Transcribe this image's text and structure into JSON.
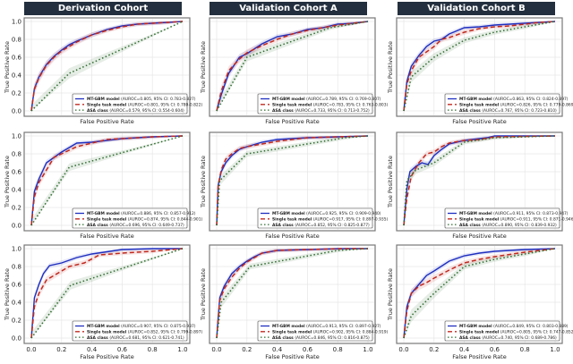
{
  "column_headers": [
    "Derivation Cohort",
    "Validation Cohort A",
    "Validation Cohort B"
  ],
  "colors": {
    "mt_gbm": "#1f2fbf",
    "single_task": "#c0281e",
    "asa": "#2e6b2e",
    "header_bg": "#232f3e"
  },
  "chart_data": [
    {
      "type": "line",
      "row": 1,
      "cohort": "Derivation Cohort",
      "xlabel": "False Positive Rate",
      "ylabel": "True Positive Rate",
      "xlim": [
        0,
        1
      ],
      "ylim": [
        0,
        1
      ],
      "xticks": [
        "0.0",
        "0.2",
        "0.4",
        "0.6",
        "0.8",
        "1.0"
      ],
      "yticks": [
        "0.0",
        "0.2",
        "0.4",
        "0.6",
        "0.8",
        "1.0"
      ],
      "grid": true,
      "legend_position": "bottom-right",
      "series": [
        {
          "name": "MT-GBM model",
          "legend": "(AUROC=0.805, 95% CI: 0.783-0.827)",
          "x": [
            0,
            0.02,
            0.05,
            0.1,
            0.15,
            0.2,
            0.25,
            0.3,
            0.4,
            0.5,
            0.6,
            0.7,
            0.8,
            0.9,
            1
          ],
          "y": [
            0,
            0.25,
            0.38,
            0.52,
            0.61,
            0.68,
            0.74,
            0.78,
            0.85,
            0.91,
            0.95,
            0.97,
            0.98,
            0.99,
            1
          ]
        },
        {
          "name": "Single task model",
          "legend": "(AUROC=0.801, 95% CI: 0.780-0.822)",
          "x": [
            0,
            0.02,
            0.05,
            0.1,
            0.15,
            0.2,
            0.25,
            0.3,
            0.4,
            0.5,
            0.6,
            0.7,
            0.8,
            0.9,
            1
          ],
          "y": [
            0,
            0.24,
            0.37,
            0.51,
            0.6,
            0.67,
            0.72,
            0.77,
            0.85,
            0.9,
            0.94,
            0.97,
            0.98,
            0.99,
            1
          ]
        },
        {
          "name": "ASA class",
          "legend": "(AUROC=0.579, 95% CI: 0.554-0.604)",
          "x": [
            0,
            0.25,
            1
          ],
          "y": [
            0,
            0.42,
            1
          ]
        }
      ]
    },
    {
      "type": "line",
      "row": 1,
      "cohort": "Validation Cohort A",
      "xlabel": "False Positive Rate",
      "ylabel": "True Positive Rate",
      "xlim": [
        0,
        1
      ],
      "ylim": [
        0,
        1
      ],
      "grid": true,
      "legend_position": "bottom-right",
      "series": [
        {
          "name": "MT-GBM model",
          "legend": "(AUROC=0.789, 95% CI: 0.769-0.807)",
          "x": [
            0,
            0.03,
            0.08,
            0.15,
            0.2,
            0.3,
            0.4,
            0.5,
            0.6,
            0.7,
            0.8,
            0.9,
            1
          ],
          "y": [
            0,
            0.18,
            0.42,
            0.6,
            0.64,
            0.75,
            0.83,
            0.86,
            0.91,
            0.93,
            0.97,
            0.98,
            1
          ]
        },
        {
          "name": "Single task model",
          "legend": "(AUROC=0.783, 95% CI: 0.763-0.803)",
          "x": [
            0,
            0.03,
            0.08,
            0.15,
            0.2,
            0.3,
            0.4,
            0.5,
            0.6,
            0.7,
            0.8,
            0.9,
            1
          ],
          "y": [
            0,
            0.22,
            0.45,
            0.58,
            0.65,
            0.73,
            0.8,
            0.86,
            0.9,
            0.93,
            0.96,
            0.98,
            1
          ]
        },
        {
          "name": "ASA class",
          "legend": "(AUROC=0.733, 95% CI: 0.713-0.752)",
          "x": [
            0,
            0.2,
            0.75,
            1
          ],
          "y": [
            0,
            0.6,
            0.93,
            1
          ]
        }
      ]
    },
    {
      "type": "line",
      "row": 1,
      "cohort": "Validation Cohort B",
      "xlabel": "False Positive Rate",
      "ylabel": "True Positive Rate",
      "xlim": [
        0,
        1
      ],
      "ylim": [
        0,
        1
      ],
      "grid": true,
      "legend_position": "bottom-right",
      "series": [
        {
          "name": "MT-GBM model",
          "legend": "(AUROC=0.863, 95% CI: 0.824-0.897)",
          "x": [
            0,
            0.02,
            0.05,
            0.1,
            0.15,
            0.2,
            0.25,
            0.3,
            0.4,
            0.5,
            0.6,
            0.7,
            0.8,
            0.9,
            1
          ],
          "y": [
            0,
            0.33,
            0.5,
            0.62,
            0.72,
            0.78,
            0.8,
            0.86,
            0.93,
            0.94,
            0.96,
            0.97,
            0.98,
            0.99,
            1
          ]
        },
        {
          "name": "Single task model",
          "legend": "(AUROC=0.826, 95% CI: 0.779-0.869)",
          "x": [
            0,
            0.02,
            0.05,
            0.1,
            0.15,
            0.2,
            0.25,
            0.3,
            0.4,
            0.5,
            0.6,
            0.7,
            0.8,
            0.9,
            1
          ],
          "y": [
            0,
            0.3,
            0.45,
            0.6,
            0.66,
            0.72,
            0.8,
            0.82,
            0.88,
            0.92,
            0.94,
            0.95,
            0.97,
            0.99,
            1
          ]
        },
        {
          "name": "ASA class",
          "legend": "(AUROC=0.767, 95% CI: 0.723-0.810)",
          "x": [
            0,
            0.05,
            0.2,
            0.4,
            0.6,
            0.8,
            1
          ],
          "y": [
            0,
            0.38,
            0.6,
            0.79,
            0.88,
            0.94,
            1
          ]
        }
      ]
    },
    {
      "type": "line",
      "row": 2,
      "cohort": "Derivation Cohort",
      "xlabel": "False Positive Rate",
      "ylabel": "True Positive Rate",
      "xlim": [
        0,
        1
      ],
      "ylim": [
        0,
        1
      ],
      "grid": true,
      "legend_position": "bottom-right",
      "series": [
        {
          "name": "MT-GBM model",
          "legend": "(AUROC=0.886, 95% CI: 0.857-0.912)",
          "x": [
            0,
            0.02,
            0.05,
            0.1,
            0.15,
            0.2,
            0.3,
            0.4,
            0.5,
            0.6,
            0.8,
            1
          ],
          "y": [
            0,
            0.38,
            0.52,
            0.7,
            0.76,
            0.82,
            0.92,
            0.93,
            0.95,
            0.97,
            0.99,
            1
          ]
        },
        {
          "name": "Single task model",
          "legend": "(AUROC=0.874, 95% CI: 0.844-0.901)",
          "x": [
            0,
            0.02,
            0.05,
            0.1,
            0.15,
            0.2,
            0.3,
            0.4,
            0.5,
            0.6,
            0.8,
            1
          ],
          "y": [
            0,
            0.32,
            0.48,
            0.62,
            0.76,
            0.8,
            0.88,
            0.92,
            0.96,
            0.97,
            0.99,
            1
          ]
        },
        {
          "name": "ASA class",
          "legend": "(AUROC=0.696, 95% CI: 0.649-0.737)",
          "x": [
            0,
            0.25,
            1
          ],
          "y": [
            0,
            0.65,
            1
          ]
        }
      ]
    },
    {
      "type": "line",
      "row": 2,
      "cohort": "Validation Cohort A",
      "xlabel": "False Positive Rate",
      "ylabel": "True Positive Rate",
      "xlim": [
        0,
        1
      ],
      "ylim": [
        0,
        1
      ],
      "grid": true,
      "legend_position": "bottom-right",
      "series": [
        {
          "name": "MT-GBM model",
          "legend": "(AUROC=0.925, 95% CI: 0.909-0.940)",
          "x": [
            0,
            0.01,
            0.03,
            0.06,
            0.1,
            0.15,
            0.2,
            0.3,
            0.4,
            0.5,
            0.6,
            0.8,
            1
          ],
          "y": [
            0,
            0.45,
            0.6,
            0.7,
            0.78,
            0.85,
            0.88,
            0.93,
            0.96,
            0.97,
            0.98,
            0.99,
            1
          ]
        },
        {
          "name": "Single task model",
          "legend": "(AUROC=0.917, 95% CI: 0.897-0.935)",
          "x": [
            0,
            0.01,
            0.03,
            0.06,
            0.1,
            0.15,
            0.2,
            0.3,
            0.4,
            0.5,
            0.6,
            0.8,
            1
          ],
          "y": [
            0,
            0.45,
            0.62,
            0.74,
            0.8,
            0.86,
            0.88,
            0.91,
            0.94,
            0.96,
            0.98,
            0.99,
            1
          ]
        },
        {
          "name": "ASA class",
          "legend": "(AUROC=0.852, 95% CI: 0.825-0.877)",
          "x": [
            0,
            0.02,
            0.2,
            0.85,
            1
          ],
          "y": [
            0,
            0.5,
            0.8,
            0.98,
            1
          ]
        }
      ]
    },
    {
      "type": "line",
      "row": 2,
      "cohort": "Validation Cohort B",
      "xlabel": "False Positive Rate",
      "ylabel": "True Positive Rate",
      "xlim": [
        0,
        1
      ],
      "ylim": [
        0,
        1
      ],
      "grid": true,
      "legend_position": "bottom-right",
      "series": [
        {
          "name": "MT-GBM model",
          "legend": "(AUROC=0.911, 95% CI: 0.873-0.947)",
          "x": [
            0,
            0.02,
            0.04,
            0.08,
            0.12,
            0.16,
            0.2,
            0.25,
            0.3,
            0.4,
            0.55,
            0.6,
            1
          ],
          "y": [
            0,
            0.4,
            0.6,
            0.66,
            0.7,
            0.68,
            0.78,
            0.85,
            0.91,
            0.95,
            0.98,
            1,
            1
          ]
        },
        {
          "name": "Single task model",
          "legend": "(AUROC=0.911, 95% CI: 0.871-0.946)",
          "x": [
            0,
            0.02,
            0.05,
            0.1,
            0.15,
            0.2,
            0.25,
            0.3,
            0.4,
            0.5,
            0.6,
            1
          ],
          "y": [
            0,
            0.3,
            0.55,
            0.7,
            0.8,
            0.82,
            0.88,
            0.92,
            0.95,
            0.96,
            0.99,
            1
          ]
        },
        {
          "name": "ASA class",
          "legend": "(AUROC=0.890, 95% CI: 0.839-0.932)",
          "x": [
            0,
            0.02,
            0.08,
            0.2,
            0.4,
            0.6,
            1
          ],
          "y": [
            0,
            0.5,
            0.62,
            0.7,
            0.93,
            0.98,
            1
          ]
        }
      ]
    },
    {
      "type": "line",
      "row": 3,
      "cohort": "Derivation Cohort",
      "xlabel": "False Positive Rate",
      "ylabel": "True Positive Rate",
      "xlim": [
        0,
        1
      ],
      "ylim": [
        0,
        1
      ],
      "xticks": [
        "0.0",
        "0.2",
        "0.4",
        "0.6",
        "0.8",
        "1.0"
      ],
      "yticks": [
        "0.0",
        "0.2",
        "0.4",
        "0.6",
        "0.8",
        "1.0"
      ],
      "grid": true,
      "legend_position": "bottom-right",
      "series": [
        {
          "name": "MT-GBM model",
          "legend": "(AUROC=0.907, 95% CI: 0.875-0.937)",
          "x": [
            0,
            0.02,
            0.05,
            0.08,
            0.12,
            0.2,
            0.3,
            0.4,
            0.6,
            0.8,
            1
          ],
          "y": [
            0,
            0.45,
            0.6,
            0.72,
            0.81,
            0.84,
            0.9,
            0.94,
            0.99,
            1,
            1
          ]
        },
        {
          "name": "Single task model",
          "legend": "(AUROC=0.852, 95% CI: 0.799-0.897)",
          "x": [
            0,
            0.02,
            0.05,
            0.1,
            0.15,
            0.25,
            0.35,
            0.45,
            0.6,
            0.8,
            1
          ],
          "y": [
            0,
            0.35,
            0.5,
            0.65,
            0.7,
            0.8,
            0.84,
            0.93,
            0.95,
            0.97,
            1
          ]
        },
        {
          "name": "ASA class",
          "legend": "(AUROC=0.681, 95% CI: 0.621-0.741)",
          "x": [
            0,
            0.26,
            1
          ],
          "y": [
            0,
            0.59,
            1
          ]
        }
      ]
    },
    {
      "type": "line",
      "row": 3,
      "cohort": "Validation Cohort A",
      "xlabel": "False Positive Rate",
      "ylabel": "True Positive Rate",
      "xlim": [
        0,
        1
      ],
      "ylim": [
        0,
        1
      ],
      "xticks": [
        "0.0",
        "0.2",
        "0.4",
        "0.6",
        "0.8",
        "1.0"
      ],
      "grid": true,
      "legend_position": "bottom-right",
      "series": [
        {
          "name": "MT-GBM model",
          "legend": "(AUROC=0.913, 95% CI: 0.897-0.927)",
          "x": [
            0,
            0.02,
            0.05,
            0.1,
            0.15,
            0.2,
            0.25,
            0.3,
            0.4,
            0.6,
            0.8,
            1
          ],
          "y": [
            0,
            0.45,
            0.58,
            0.72,
            0.8,
            0.86,
            0.91,
            0.95,
            0.98,
            0.99,
            1,
            1
          ]
        },
        {
          "name": "Single task model",
          "legend": "(AUROC=0.902, 95% CI: 0.884-0.919)",
          "x": [
            0,
            0.02,
            0.05,
            0.1,
            0.15,
            0.2,
            0.25,
            0.3,
            0.4,
            0.6,
            0.8,
            1
          ],
          "y": [
            0,
            0.42,
            0.55,
            0.68,
            0.78,
            0.85,
            0.9,
            0.95,
            0.98,
            0.99,
            1,
            1
          ]
        },
        {
          "name": "ASA class",
          "legend": "(AUROC=0.846, 95% CI: 0.816-0.875)",
          "x": [
            0,
            0.03,
            0.22,
            0.8,
            1
          ],
          "y": [
            0,
            0.4,
            0.8,
            0.98,
            1
          ]
        }
      ]
    },
    {
      "type": "line",
      "row": 3,
      "cohort": "Validation Cohort B",
      "xlabel": "False Positive Rate",
      "ylabel": "True Positive Rate",
      "xlim": [
        0,
        1
      ],
      "ylim": [
        0,
        1
      ],
      "xticks": [
        "0.0",
        "0.2",
        "0.4",
        "0.6",
        "0.8",
        "1.0"
      ],
      "grid": true,
      "legend_position": "bottom-right",
      "series": [
        {
          "name": "MT-GBM model",
          "legend": "(AUROC=0.849, 95% CI: 0.803-0.889)",
          "x": [
            0,
            0.02,
            0.05,
            0.1,
            0.15,
            0.2,
            0.3,
            0.4,
            0.5,
            0.6,
            0.8,
            1
          ],
          "y": [
            0,
            0.35,
            0.5,
            0.6,
            0.7,
            0.75,
            0.86,
            0.92,
            0.95,
            0.97,
            0.99,
            1
          ]
        },
        {
          "name": "Single task model",
          "legend": "(AUROC=0.805, 95% CI: 0.747-0.852)",
          "x": [
            0,
            0.02,
            0.05,
            0.1,
            0.15,
            0.2,
            0.3,
            0.4,
            0.5,
            0.6,
            0.8,
            1
          ],
          "y": [
            0,
            0.3,
            0.5,
            0.58,
            0.62,
            0.67,
            0.76,
            0.84,
            0.88,
            0.91,
            0.96,
            1
          ]
        },
        {
          "name": "ASA class",
          "legend": "(AUROC=0.740, 95% CI: 0.689-0.786)",
          "x": [
            0,
            0.05,
            0.2,
            0.4,
            0.6,
            0.8,
            1
          ],
          "y": [
            0,
            0.25,
            0.5,
            0.8,
            0.88,
            0.94,
            1
          ]
        }
      ]
    }
  ]
}
